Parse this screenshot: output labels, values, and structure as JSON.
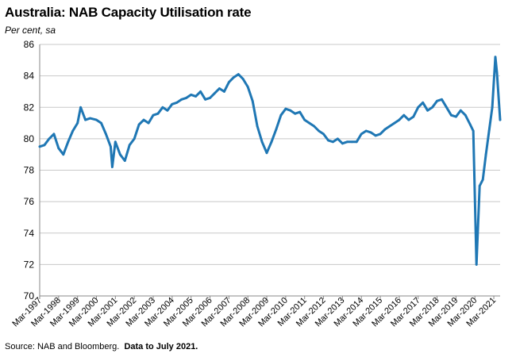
{
  "chart_data": {
    "type": "line",
    "title": "Australia: NAB Capacity Utilisation rate",
    "subtitle": "Per cent, sa",
    "xlabel": "",
    "ylabel": "",
    "ylim": [
      70,
      86
    ],
    "yticks": [
      70,
      72,
      74,
      76,
      78,
      80,
      82,
      84,
      86
    ],
    "grid": true,
    "legend": "none",
    "line_color": "#1f77b4",
    "x_start": "Mar-1997",
    "x_end": "Jul-2021",
    "xtick_labels": [
      "Mar-1997",
      "Mar-1998",
      "Mar-1999",
      "Mar-2000",
      "Mar-2001",
      "Mar-2002",
      "Mar-2003",
      "Mar-2004",
      "Mar-2005",
      "Mar-2006",
      "Mar-2007",
      "Mar-2008",
      "Mar-2009",
      "Mar-2010",
      "Mar-2011",
      "Mar-2012",
      "Mar-2013",
      "Mar-2014",
      "Mar-2015",
      "Mar-2016",
      "Mar-2017",
      "Mar-2018",
      "Mar-2019",
      "Mar-2020",
      "Mar-2021"
    ],
    "series": [
      {
        "x": [
          "1997-03",
          "1997-06",
          "1997-09",
          "1997-12",
          "1998-03",
          "1998-06",
          "1998-09",
          "1998-12",
          "1999-03",
          "1999-05",
          "1999-08",
          "1999-11",
          "2000-03",
          "2000-06",
          "2000-09",
          "2000-12",
          "2001-01",
          "2001-03",
          "2001-06",
          "2001-09",
          "2001-12",
          "2002-03",
          "2002-06",
          "2002-09",
          "2002-12",
          "2003-03",
          "2003-06",
          "2003-09",
          "2003-12",
          "2004-03",
          "2004-06",
          "2004-09",
          "2004-12",
          "2005-03",
          "2005-06",
          "2005-09",
          "2005-12",
          "2006-03",
          "2006-06",
          "2006-09",
          "2006-12",
          "2007-03",
          "2007-06",
          "2007-09",
          "2007-12",
          "2008-03",
          "2008-06",
          "2008-09",
          "2008-12",
          "2009-03",
          "2009-06",
          "2009-09",
          "2009-12",
          "2010-03",
          "2010-06",
          "2010-09",
          "2010-12",
          "2011-03",
          "2011-06",
          "2011-09",
          "2011-12",
          "2012-03",
          "2012-06",
          "2012-09",
          "2012-12",
          "2013-03",
          "2013-06",
          "2013-09",
          "2013-12",
          "2014-03",
          "2014-06",
          "2014-09",
          "2014-12",
          "2015-03",
          "2015-06",
          "2015-09",
          "2015-12",
          "2016-03",
          "2016-06",
          "2016-09",
          "2016-12",
          "2017-03",
          "2017-06",
          "2017-09",
          "2017-12",
          "2018-03",
          "2018-06",
          "2018-09",
          "2018-12",
          "2019-03",
          "2019-06",
          "2019-09",
          "2019-12",
          "2020-02",
          "2020-04",
          "2020-06",
          "2020-08",
          "2020-10",
          "2020-12",
          "2021-02",
          "2021-04",
          "2021-05",
          "2021-07"
        ],
        "y": [
          79.5,
          79.6,
          80.0,
          80.3,
          79.4,
          79.0,
          79.8,
          80.5,
          81.0,
          82.0,
          81.2,
          81.3,
          81.2,
          81.0,
          80.3,
          79.5,
          78.2,
          79.8,
          79.0,
          78.6,
          79.6,
          80.0,
          80.9,
          81.2,
          81.0,
          81.5,
          81.6,
          82.0,
          81.8,
          82.2,
          82.3,
          82.5,
          82.6,
          82.8,
          82.7,
          83.0,
          82.5,
          82.6,
          82.9,
          83.2,
          83.0,
          83.6,
          83.9,
          84.1,
          83.8,
          83.3,
          82.4,
          80.8,
          79.8,
          79.1,
          79.8,
          80.6,
          81.5,
          81.9,
          81.8,
          81.6,
          81.7,
          81.2,
          81.0,
          80.8,
          80.5,
          80.3,
          79.9,
          79.8,
          80.0,
          79.7,
          79.8,
          79.8,
          79.8,
          80.3,
          80.5,
          80.4,
          80.2,
          80.3,
          80.6,
          80.8,
          81.0,
          81.2,
          81.5,
          81.2,
          81.4,
          82.0,
          82.3,
          81.8,
          82.0,
          82.4,
          82.5,
          82.0,
          81.5,
          81.4,
          81.8,
          81.5,
          80.9,
          80.5,
          72.0,
          77.0,
          77.4,
          79.0,
          80.5,
          82.0,
          85.2,
          84.2,
          81.2
        ]
      }
    ]
  },
  "source": {
    "prefix": "Source: NAB and Bloomberg.",
    "bold": "Data to July 2021."
  }
}
